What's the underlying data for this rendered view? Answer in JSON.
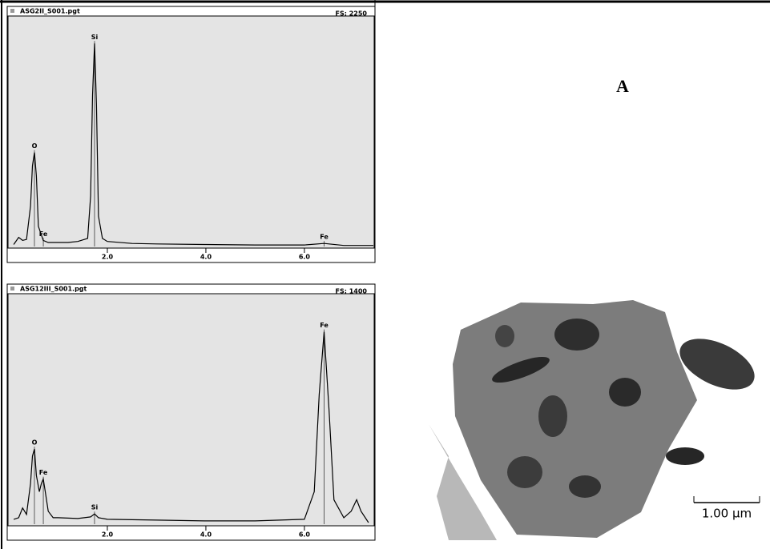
{
  "chart_data": [
    {
      "type": "line",
      "title": "ASG2II_S001.pgt",
      "fs_label": "FS: 2250",
      "x": [
        0.1,
        0.2,
        0.28,
        0.36,
        0.44,
        0.48,
        0.52,
        0.56,
        0.6,
        0.7,
        0.8,
        1.0,
        1.2,
        1.4,
        1.6,
        1.66,
        1.7,
        1.74,
        1.78,
        1.82,
        1.9,
        2.0,
        2.5,
        3.0,
        4.0,
        5.0,
        6.0,
        6.4,
        6.8,
        7.4
      ],
      "series": [
        {
          "color": "#000000",
          "values": [
            20,
            90,
            60,
            70,
            400,
            800,
            930,
            700,
            200,
            60,
            40,
            40,
            40,
            50,
            80,
            500,
            1500,
            2010,
            1400,
            300,
            80,
            50,
            30,
            25,
            20,
            15,
            15,
            30,
            10,
            10
          ]
        }
      ],
      "xlim": [
        0,
        7.4
      ],
      "ylim": [
        0,
        2250
      ],
      "xticks": [
        {
          "value": 2,
          "label": "2.0"
        },
        {
          "value": 4,
          "label": "4.0"
        },
        {
          "value": 6,
          "label": "6.0"
        }
      ],
      "annotations": [
        {
          "text": "O",
          "x": 0.52
        },
        {
          "text": "Si",
          "x": 1.74
        },
        {
          "text": "Fe",
          "x": 0.7
        },
        {
          "text": "Fe",
          "x": 6.4
        }
      ]
    },
    {
      "type": "line",
      "title": "ASG12III_S001.pgt",
      "fs_label": "FS: 1400",
      "x": [
        0.1,
        0.2,
        0.28,
        0.36,
        0.44,
        0.48,
        0.52,
        0.56,
        0.62,
        0.66,
        0.7,
        0.74,
        0.8,
        0.9,
        1.0,
        1.4,
        1.66,
        1.74,
        1.82,
        2.0,
        3.0,
        4.0,
        5.0,
        6.0,
        6.2,
        6.3,
        6.4,
        6.5,
        6.6,
        6.8,
        6.95,
        7.06,
        7.15,
        7.3
      ],
      "series": [
        {
          "color": "#000000",
          "values": [
            30,
            40,
            100,
            60,
            250,
            420,
            463,
            300,
            200,
            250,
            278,
            200,
            80,
            40,
            40,
            35,
            45,
            63,
            40,
            30,
            25,
            20,
            20,
            30,
            200,
            800,
            1185,
            700,
            150,
            40,
            80,
            151,
            80,
            10
          ]
        }
      ],
      "xlim": [
        0,
        7.4
      ],
      "ylim": [
        0,
        1400
      ],
      "xticks": [
        {
          "value": 2,
          "label": "2.0"
        },
        {
          "value": 4,
          "label": "4.0"
        },
        {
          "value": 6,
          "label": "6.0"
        }
      ],
      "annotations": [
        {
          "text": "O",
          "x": 0.52
        },
        {
          "text": "Fe",
          "x": 0.7
        },
        {
          "text": "Si",
          "x": 1.74
        },
        {
          "text": "Fe",
          "x": 6.4
        }
      ]
    }
  ],
  "panel_label": "A",
  "scale_bar": "1.00 µm"
}
